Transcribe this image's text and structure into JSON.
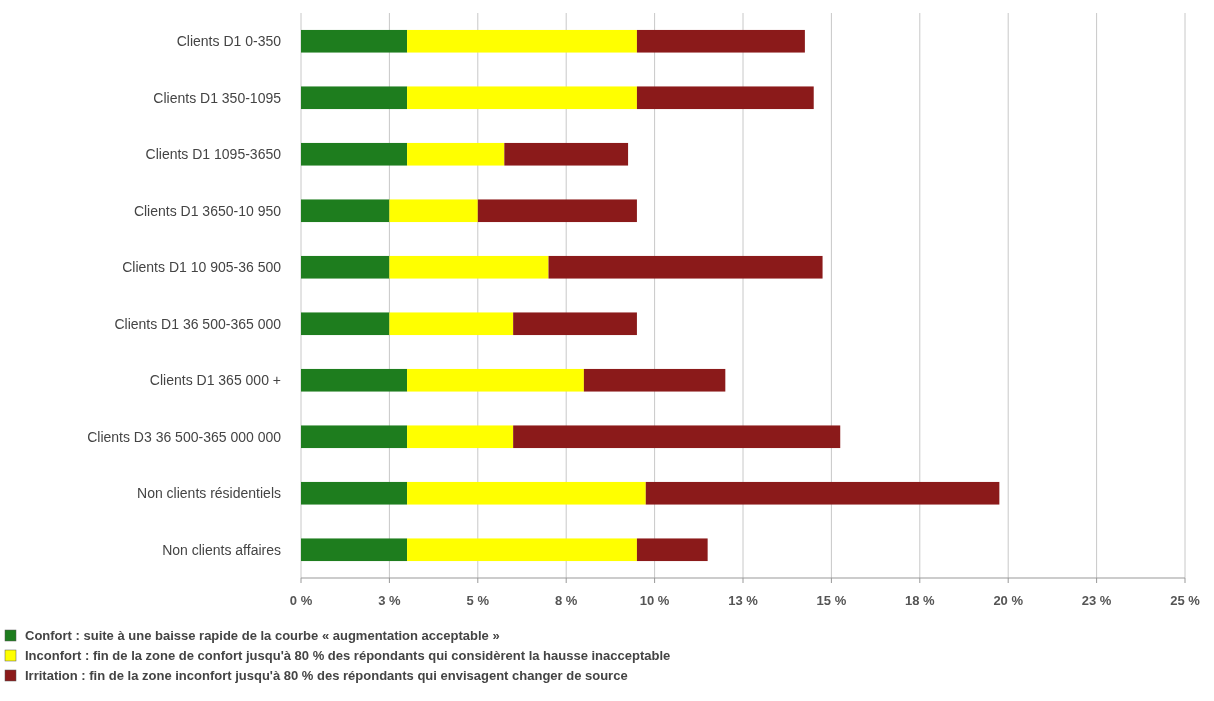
{
  "chart_data": {
    "type": "bar",
    "orientation": "horizontal",
    "stacked": true,
    "categories": [
      "Clients D1 0-350",
      "Clients D1 350-1095",
      "Clients D1 1095-3650",
      "Clients D1 3650-10 950",
      "Clients D1 10 905-36 500",
      "Clients D1 36 500-365 000",
      "Clients D1 365 000 +",
      "Clients D3 36 500-365 000 000",
      "Non clients résidentiels",
      "Non clients affaires"
    ],
    "series": [
      {
        "name": "Confort : suite à une baisse rapide de la courbe « augmentation acceptable »",
        "color": "#1e7d1e",
        "values": [
          3,
          3,
          3,
          2.5,
          2.5,
          2.5,
          3,
          3,
          3,
          3
        ]
      },
      {
        "name": "Inconfort : fin de la zone de confort jusqu'à 80 % des répondants qui considèrent la hausse inacceptable",
        "color": "#ffff00",
        "values": [
          6.5,
          6.5,
          2.75,
          2.5,
          4.5,
          3.5,
          5,
          3,
          6.75,
          6.5
        ]
      },
      {
        "name": "Irritation : fin de la zone inconfort jusqu'à 80 % des répondants qui envisagent changer de source",
        "color": "#8b1a1a",
        "values": [
          4.75,
          5,
          3.5,
          4.5,
          7.75,
          3.5,
          4,
          9.25,
          10,
          2
        ]
      }
    ],
    "xlim": [
      0,
      25
    ],
    "xticks": [
      {
        "value": 0,
        "label": "0 %"
      },
      {
        "value": 2.5,
        "label": "3 %"
      },
      {
        "value": 5,
        "label": "5 %"
      },
      {
        "value": 7.5,
        "label": "8 %"
      },
      {
        "value": 10,
        "label": "10 %"
      },
      {
        "value": 12.5,
        "label": "13 %"
      },
      {
        "value": 15,
        "label": "15 %"
      },
      {
        "value": 17.5,
        "label": "18 %"
      },
      {
        "value": 20,
        "label": "20 %"
      },
      {
        "value": 22.5,
        "label": "23 %"
      },
      {
        "value": 25,
        "label": "25 %"
      }
    ],
    "grid": "x",
    "legend": "bottom"
  }
}
